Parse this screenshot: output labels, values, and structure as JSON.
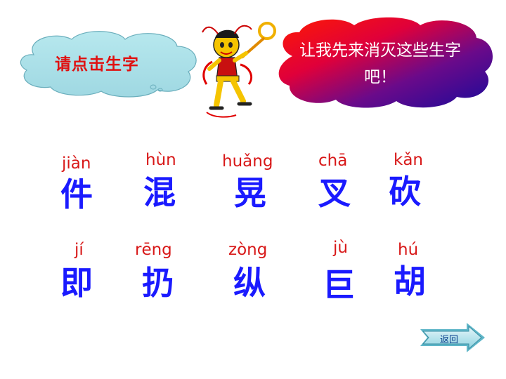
{
  "prompt_cloud": {
    "text": "请点击生字"
  },
  "speech_cloud": {
    "line1": "让我先来消灭这些生字",
    "line2": "吧！"
  },
  "characters": [
    {
      "pinyin": "jiàn",
      "hanzi": "件"
    },
    {
      "pinyin": "hùn",
      "hanzi": "混"
    },
    {
      "pinyin": "huǎng",
      "hanzi": "晃"
    },
    {
      "pinyin": "chā",
      "hanzi": "叉"
    },
    {
      "pinyin": "kǎn",
      "hanzi": "砍"
    },
    {
      "pinyin": "jí",
      "hanzi": "即"
    },
    {
      "pinyin": "rēng",
      "hanzi": "扔"
    },
    {
      "pinyin": "zòng",
      "hanzi": "纵"
    },
    {
      "pinyin": "jù",
      "hanzi": "巨"
    },
    {
      "pinyin": "hú",
      "hanzi": "胡"
    }
  ],
  "back_button": {
    "label": "返回",
    "icon": "arrow-right-icon"
  },
  "colors": {
    "pinyin": "#d81818",
    "hanzi": "#1a1aff",
    "prompt_text": "#e01010",
    "speech_text": "#ffffff"
  }
}
